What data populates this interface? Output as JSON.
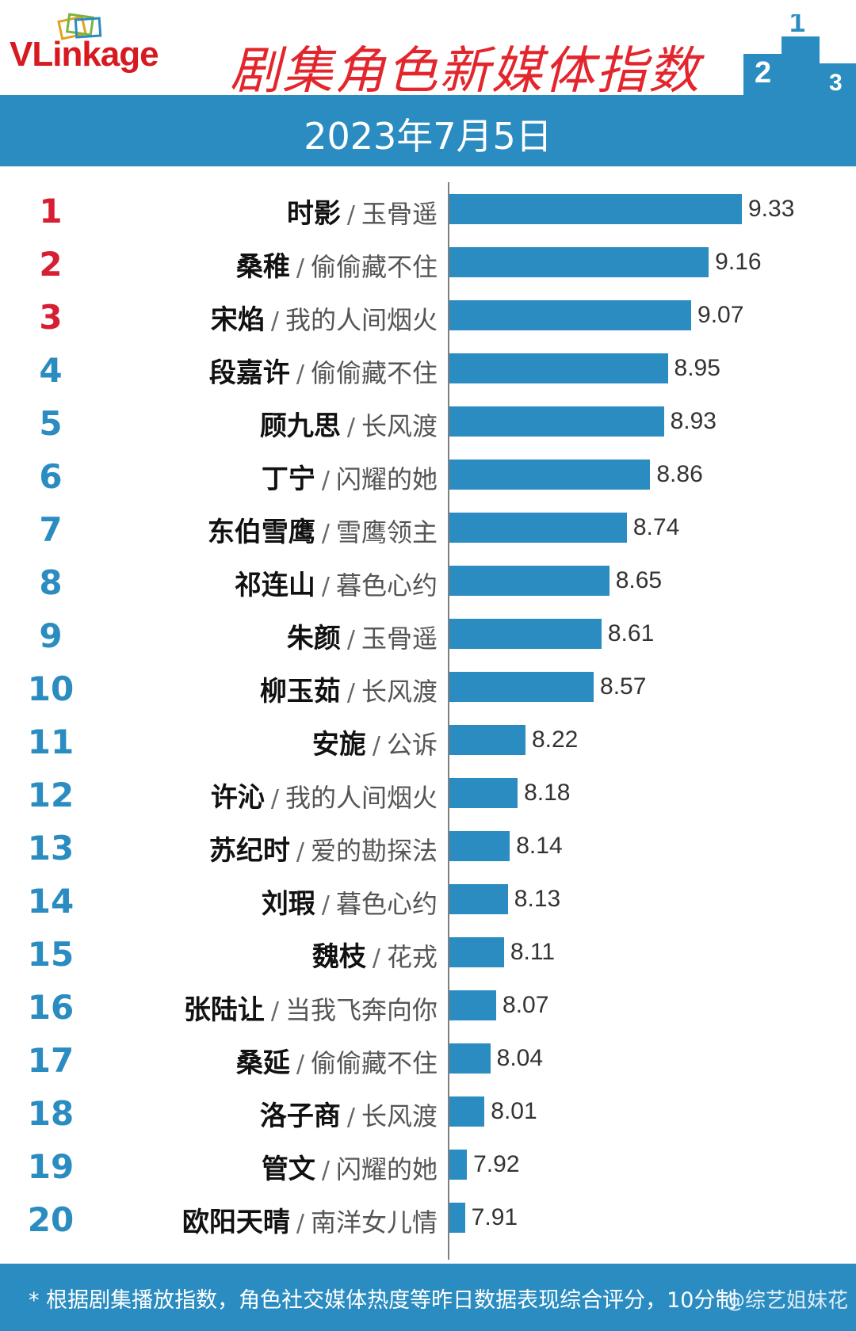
{
  "header": {
    "logo_text": "VLinkage",
    "title": "剧集角色新媒体指数"
  },
  "date": "2023年7月5日",
  "footer": {
    "note": "* 根据剧集播放指数，角色社交媒体热度等昨日数据表现综合评分，10分制",
    "watermark": "@综艺姐妹花"
  },
  "colors": {
    "bar": "#2a8cc0",
    "rank_top3": "#d71f34",
    "rank_other": "#2a8cc0",
    "title": "#e3262d"
  },
  "chart_data": {
    "type": "bar",
    "orientation": "horizontal",
    "categories": [
      "时影 / 玉骨遥",
      "桑稚 / 偷偷藏不住",
      "宋焰 / 我的人间烟火",
      "段嘉许 / 偷偷藏不住",
      "顾九思 / 长风渡",
      "丁宁 / 闪耀的她",
      "东伯雪鹰 / 雪鹰领主",
      "祁连山 / 暮色心约",
      "朱颜 / 玉骨遥",
      "柳玉茹 / 长风渡",
      "安旎 / 公诉",
      "许沁 / 我的人间烟火",
      "苏纪时 / 爱的勘探法",
      "刘瑕 / 暮色心约",
      "魏枝 / 花戎",
      "张陆让 / 当我飞奔向你",
      "桑延 / 偷偷藏不住",
      "洛子商 / 长风渡",
      "管文 / 闪耀的她",
      "欧阳天晴 / 南洋女儿情"
    ],
    "values": [
      9.33,
      9.16,
      9.07,
      8.95,
      8.93,
      8.86,
      8.74,
      8.65,
      8.61,
      8.57,
      8.22,
      8.18,
      8.14,
      8.13,
      8.11,
      8.07,
      8.04,
      8.01,
      7.92,
      7.91
    ],
    "value_labels": [
      "9.33",
      "9.16",
      "9.07",
      "8.95",
      "8.93",
      "8.86",
      "8.74",
      "8.65",
      "8.61",
      "8.57",
      "8.22",
      "8.18",
      "8.14",
      "8.13",
      "8.11",
      "8.07",
      "8.04",
      "8.01",
      "7.92",
      "7.91"
    ],
    "rows": [
      {
        "rank": "1",
        "name": "时影",
        "drama": "玉骨遥"
      },
      {
        "rank": "2",
        "name": "桑稚",
        "drama": "偷偷藏不住"
      },
      {
        "rank": "3",
        "name": "宋焰",
        "drama": "我的人间烟火"
      },
      {
        "rank": "4",
        "name": "段嘉许",
        "drama": "偷偷藏不住"
      },
      {
        "rank": "5",
        "name": "顾九思",
        "drama": "长风渡"
      },
      {
        "rank": "6",
        "name": "丁宁",
        "drama": "闪耀的她"
      },
      {
        "rank": "7",
        "name": "东伯雪鹰",
        "drama": "雪鹰领主"
      },
      {
        "rank": "8",
        "name": "祁连山",
        "drama": "暮色心约"
      },
      {
        "rank": "9",
        "name": "朱颜",
        "drama": "玉骨遥"
      },
      {
        "rank": "10",
        "name": "柳玉茹",
        "drama": "长风渡"
      },
      {
        "rank": "11",
        "name": "安旎",
        "drama": "公诉"
      },
      {
        "rank": "12",
        "name": "许沁",
        "drama": "我的人间烟火"
      },
      {
        "rank": "13",
        "name": "苏纪时",
        "drama": "爱的勘探法"
      },
      {
        "rank": "14",
        "name": "刘瑕",
        "drama": "暮色心约"
      },
      {
        "rank": "15",
        "name": "魏枝",
        "drama": "花戎"
      },
      {
        "rank": "16",
        "name": "张陆让",
        "drama": "当我飞奔向你"
      },
      {
        "rank": "17",
        "name": "桑延",
        "drama": "偷偷藏不住"
      },
      {
        "rank": "18",
        "name": "洛子商",
        "drama": "长风渡"
      },
      {
        "rank": "19",
        "name": "管文",
        "drama": "闪耀的她"
      },
      {
        "rank": "20",
        "name": "欧阳天晴",
        "drama": "南洋女儿情"
      }
    ],
    "title": "",
    "xlabel": "",
    "ylabel": ""
  }
}
